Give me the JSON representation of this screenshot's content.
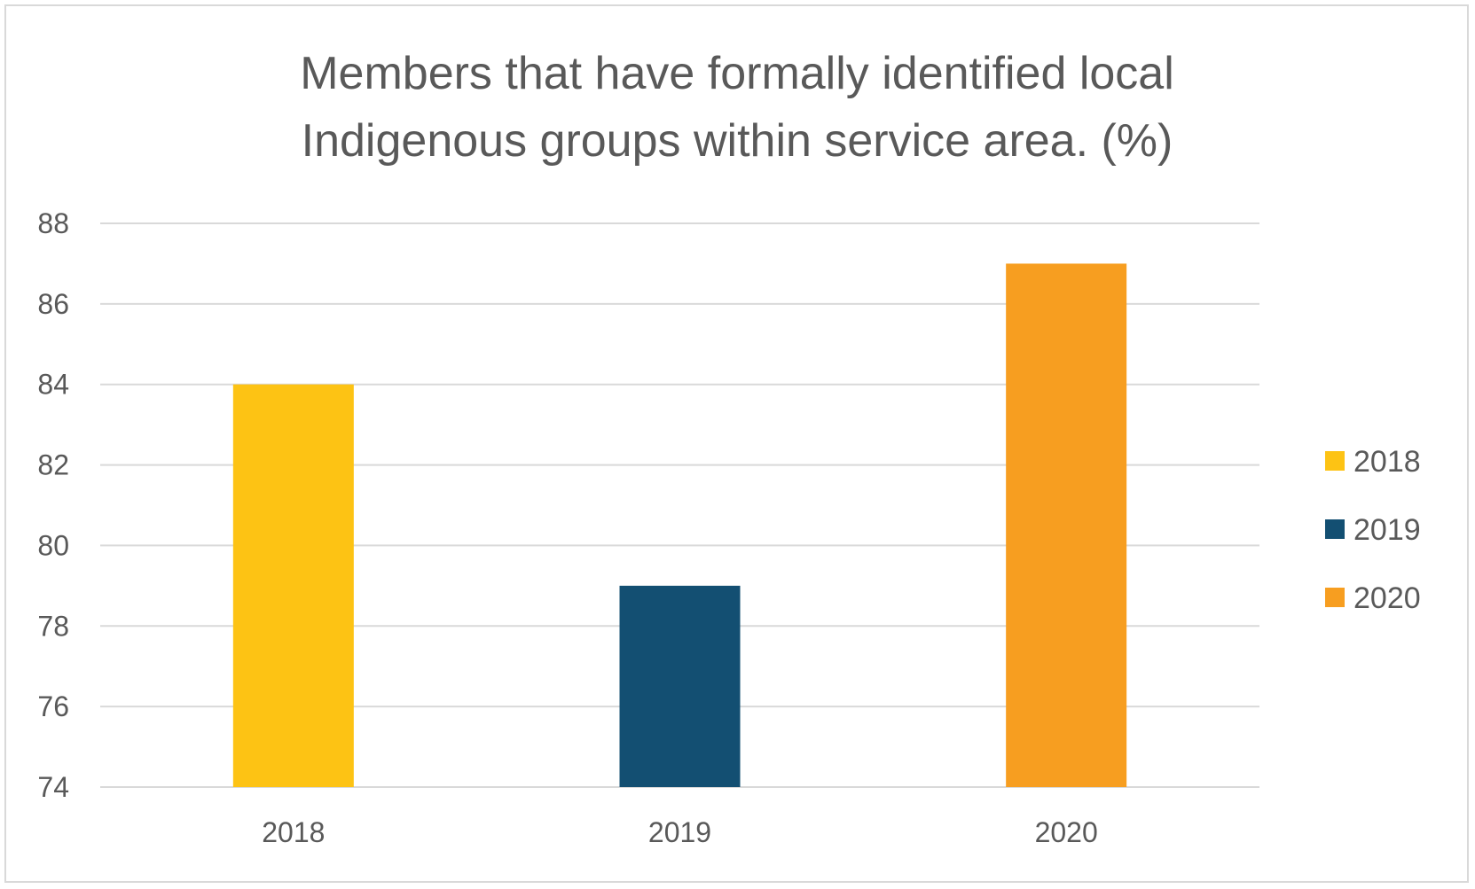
{
  "chart_data": {
    "type": "bar",
    "title_lines": [
      "Members that have formally identified local",
      "Indigenous groups within service area. (%)"
    ],
    "categories": [
      "2018",
      "2019",
      "2020"
    ],
    "values": [
      84,
      79,
      87
    ],
    "colors": [
      "#FDC314",
      "#134F72",
      "#F79E20"
    ],
    "ylim": [
      74,
      88
    ],
    "yticks": [
      74,
      76,
      78,
      80,
      82,
      84,
      86,
      88
    ],
    "ytick_labels": [
      "74",
      "76",
      "78",
      "80",
      "82",
      "84",
      "86",
      "88"
    ],
    "xlabel": "",
    "ylabel": "",
    "grid": true,
    "gridline_color": "#d9d9d9",
    "legend": {
      "position": "right",
      "entries": [
        "2018",
        "2019",
        "2020"
      ]
    }
  }
}
